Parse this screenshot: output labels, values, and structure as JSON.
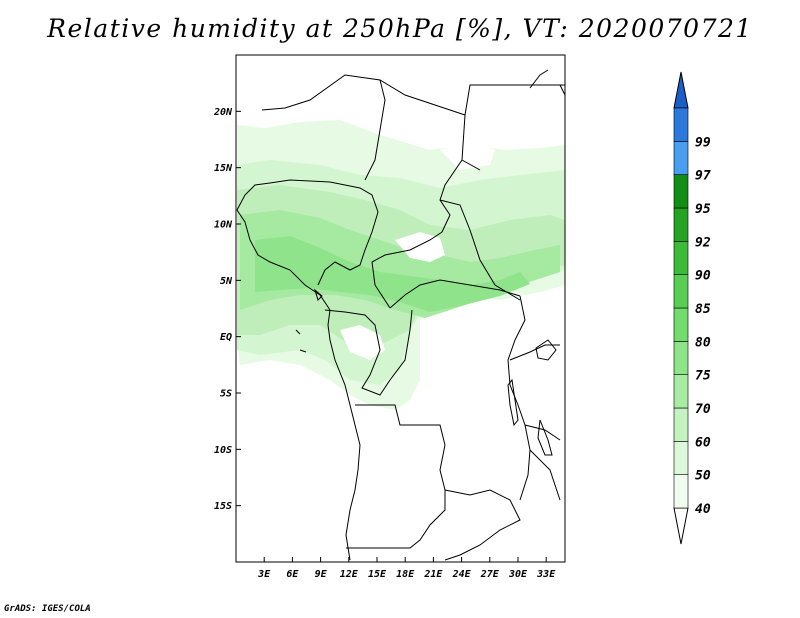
{
  "title": "Relative humidity at 250hPa [%], VT: 2020070721",
  "credit": "GrADS: IGES/COLA",
  "map": {
    "lon_range": [
      0,
      35
    ],
    "lat_range": [
      -20,
      25
    ],
    "x_ticks": [
      {
        "value": 3,
        "label": "3E"
      },
      {
        "value": 6,
        "label": "6E"
      },
      {
        "value": 9,
        "label": "9E"
      },
      {
        "value": 12,
        "label": "12E"
      },
      {
        "value": 15,
        "label": "15E"
      },
      {
        "value": 18,
        "label": "18E"
      },
      {
        "value": 21,
        "label": "21E"
      },
      {
        "value": 24,
        "label": "24E"
      },
      {
        "value": 27,
        "label": "27E"
      },
      {
        "value": 30,
        "label": "30E"
      },
      {
        "value": 33,
        "label": "33E"
      }
    ],
    "y_ticks": [
      {
        "value": 20,
        "label": "20N"
      },
      {
        "value": 15,
        "label": "15N"
      },
      {
        "value": 10,
        "label": "10N"
      },
      {
        "value": 5,
        "label": "5N"
      },
      {
        "value": 0,
        "label": "EQ"
      },
      {
        "value": -5,
        "label": "5S"
      },
      {
        "value": -10,
        "label": "10S"
      },
      {
        "value": -15,
        "label": "15S"
      }
    ]
  },
  "colorbar": {
    "levels": [
      {
        "label": "40",
        "color": "#f0fcef"
      },
      {
        "label": "50",
        "color": "#dcf8da"
      },
      {
        "label": "60",
        "color": "#c4f2c0"
      },
      {
        "label": "70",
        "color": "#a8eca3"
      },
      {
        "label": "75",
        "color": "#8ee589"
      },
      {
        "label": "80",
        "color": "#72dc6c"
      },
      {
        "label": "85",
        "color": "#58cf52"
      },
      {
        "label": "90",
        "color": "#3cbb38"
      },
      {
        "label": "92",
        "color": "#25a424"
      },
      {
        "label": "95",
        "color": "#138e14"
      },
      {
        "label": "97",
        "color": "#4a9ef0"
      },
      {
        "label": "99",
        "color": "#2c78dc"
      }
    ],
    "below_color": "#ffffff",
    "above_color": "#1a5fc8"
  }
}
